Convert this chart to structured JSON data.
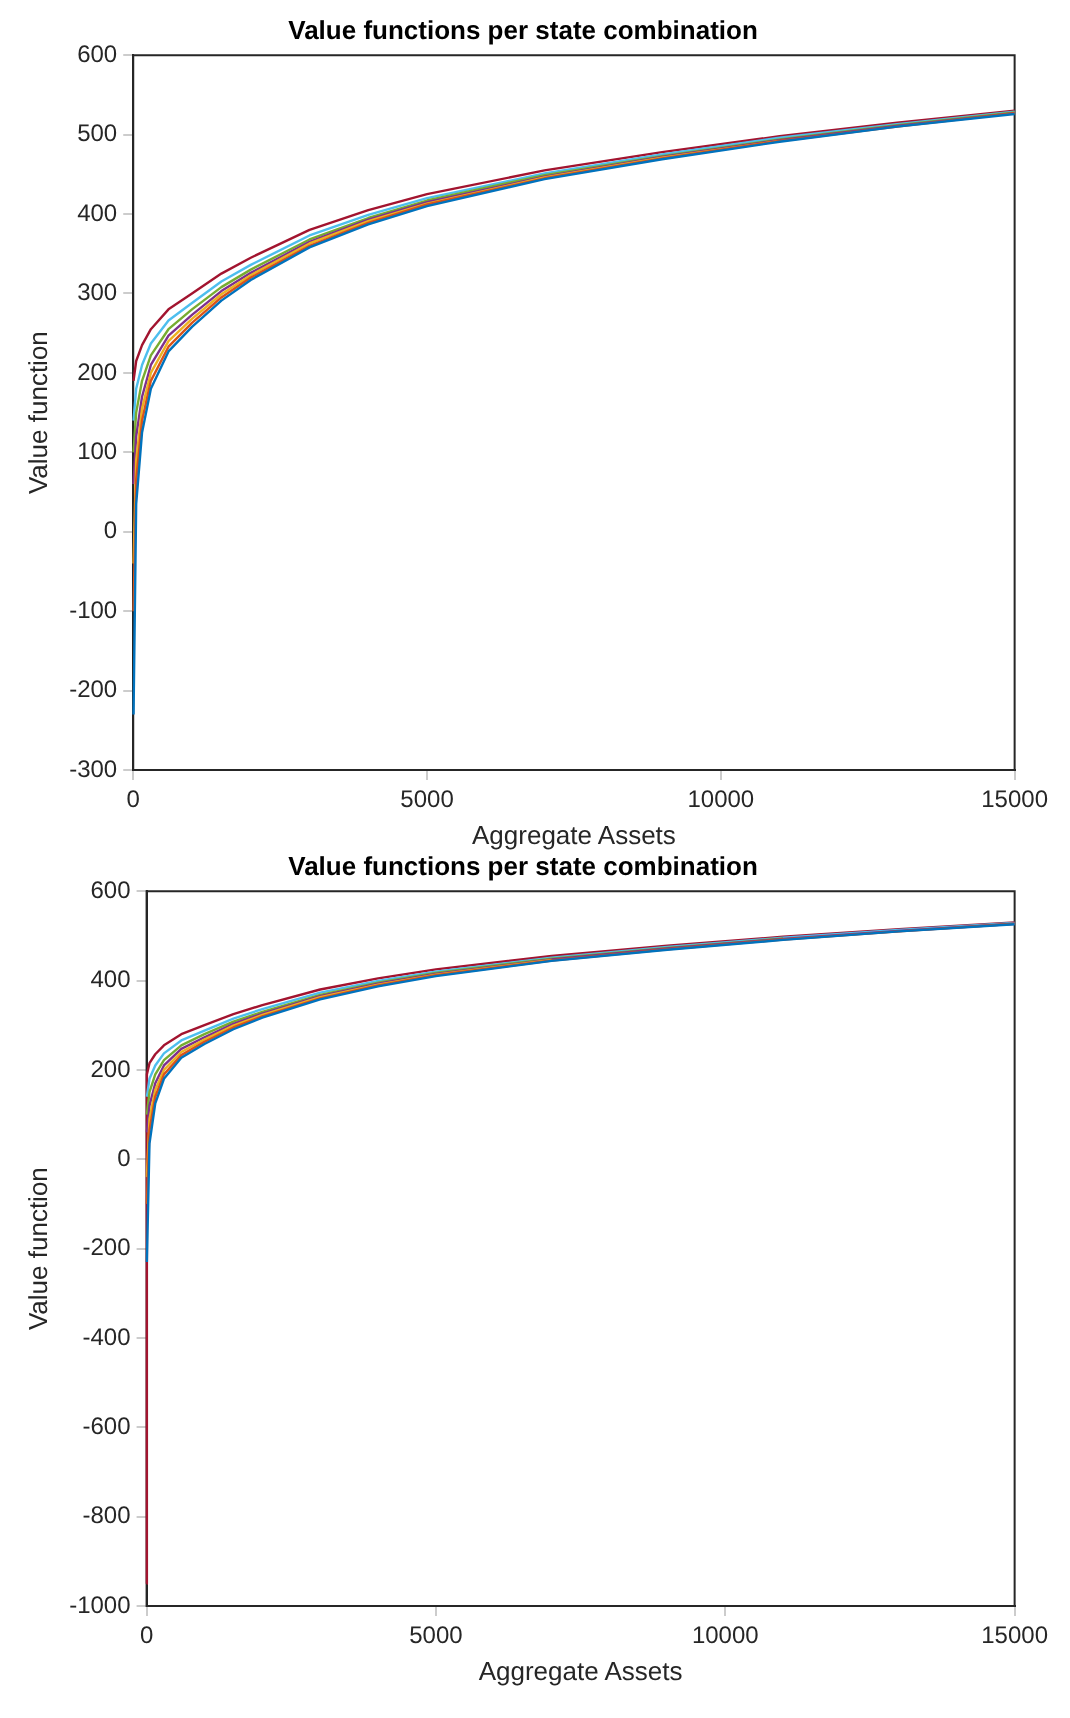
{
  "chart_data": [
    {
      "type": "line",
      "title": "Value functions per state combination",
      "xlabel": "Aggregate Assets",
      "ylabel": "Value function",
      "x": [
        5,
        50,
        150,
        300,
        600,
        1000,
        1500,
        2000,
        3000,
        4000,
        5000,
        7000,
        9000,
        11000,
        13000,
        15000
      ],
      "xlim": [
        0,
        15000
      ],
      "xticks": [
        0,
        5000,
        10000,
        15000
      ],
      "ylim": [
        -300,
        600
      ],
      "yticks": [
        -300,
        -200,
        -100,
        0,
        100,
        200,
        300,
        400,
        500,
        600
      ],
      "grid": false,
      "legend": false,
      "marker": "none",
      "line_style": "solid",
      "series": [
        {
          "color": "#0072bd",
          "values": [
            -230,
            35,
            125,
            180,
            227,
            258,
            291,
            317,
            358,
            387,
            410,
            444,
            469,
            491,
            510,
            526
          ]
        },
        {
          "color": "#d95319",
          "values": [
            -100,
            65,
            140,
            190,
            233,
            263,
            295,
            320,
            360,
            389,
            412,
            445,
            470,
            492,
            510,
            527
          ]
        },
        {
          "color": "#edb120",
          "values": [
            -40,
            90,
            155,
            200,
            240,
            268,
            299,
            323,
            363,
            391,
            413,
            446,
            471,
            492,
            null,
            null
          ]
        },
        {
          "color": "#7e2f8e",
          "values": [
            60,
            120,
            170,
            210,
            247,
            273,
            303,
            326,
            365,
            393,
            415,
            447,
            472,
            493,
            511,
            527
          ]
        },
        {
          "color": "#77ac30",
          "values": [
            100,
            150,
            190,
            222,
            255,
            280,
            308,
            330,
            368,
            395,
            417,
            449,
            473,
            494,
            512,
            528
          ]
        },
        {
          "color": "#4dbeee",
          "values": [
            140,
            180,
            210,
            237,
            266,
            288,
            315,
            336,
            373,
            399,
            420,
            451,
            475,
            496,
            513,
            529
          ]
        },
        {
          "color": "#a2142f",
          "values": [
            190,
            215,
            235,
            255,
            280,
            300,
            325,
            345,
            380,
            405,
            425,
            455,
            478,
            498,
            515,
            530
          ]
        }
      ]
    },
    {
      "type": "line",
      "title": "Value functions per state combination",
      "xlabel": "Aggregate Assets",
      "ylabel": "Value function",
      "x": [
        1,
        5,
        50,
        150,
        300,
        600,
        1000,
        1500,
        2000,
        3000,
        4000,
        5000,
        7000,
        9000,
        11000,
        13000,
        15000
      ],
      "xlim": [
        0,
        15000
      ],
      "xticks": [
        0,
        5000,
        10000,
        15000
      ],
      "ylim": [
        -1000,
        600
      ],
      "yticks": [
        -1000,
        -800,
        -600,
        -400,
        -200,
        0,
        200,
        400,
        600
      ],
      "grid": false,
      "legend": false,
      "marker": "none",
      "line_style": "solid",
      "series": [
        {
          "color": "#0072bd",
          "values": [
            null,
            -230,
            35,
            125,
            180,
            227,
            258,
            291,
            317,
            358,
            387,
            410,
            444,
            469,
            491,
            510,
            526
          ]
        },
        {
          "color": "#d95319",
          "values": [
            null,
            -100,
            65,
            140,
            190,
            233,
            263,
            295,
            320,
            360,
            389,
            412,
            445,
            470,
            492,
            510,
            527
          ]
        },
        {
          "color": "#edb120",
          "values": [
            null,
            -40,
            90,
            155,
            200,
            240,
            268,
            299,
            323,
            363,
            391,
            413,
            446,
            null,
            null,
            null,
            null
          ]
        },
        {
          "color": "#7e2f8e",
          "values": [
            null,
            60,
            120,
            170,
            210,
            247,
            273,
            303,
            326,
            365,
            393,
            415,
            447,
            472,
            493,
            511,
            527
          ]
        },
        {
          "color": "#77ac30",
          "values": [
            null,
            100,
            150,
            190,
            222,
            255,
            280,
            308,
            330,
            368,
            395,
            417,
            449,
            473,
            494,
            null,
            null
          ]
        },
        {
          "color": "#4dbeee",
          "values": [
            null,
            140,
            180,
            210,
            237,
            266,
            288,
            315,
            336,
            373,
            399,
            420,
            451,
            475,
            496,
            513,
            529
          ]
        },
        {
          "color": "#a2142f",
          "values": [
            -950,
            190,
            215,
            235,
            255,
            280,
            300,
            325,
            345,
            380,
            405,
            425,
            455,
            478,
            498,
            515,
            530
          ]
        }
      ]
    }
  ]
}
